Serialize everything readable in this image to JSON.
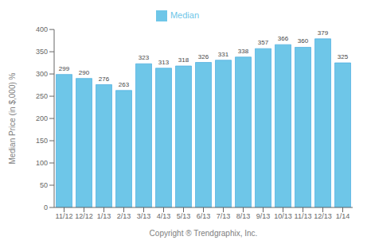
{
  "chart_data": {
    "type": "bar",
    "categories": [
      "11/12",
      "12/12",
      "1/13",
      "2/13",
      "3/13",
      "4/13",
      "5/13",
      "6/13",
      "7/13",
      "8/13",
      "9/13",
      "10/13",
      "11/13",
      "12/13",
      "1/14"
    ],
    "series": [
      {
        "name": "Median",
        "color": "#6EC6E8",
        "values": [
          299,
          290,
          276,
          263,
          323,
          313,
          318,
          326,
          331,
          338,
          357,
          366,
          360,
          379,
          325
        ]
      }
    ],
    "xlabel": "Copyright ® Trendgraphix, Inc.",
    "ylabel": "Median Price (in $,000) %",
    "ylim": [
      0,
      400
    ],
    "yticks": [
      0,
      50,
      100,
      150,
      200,
      250,
      300,
      350,
      400
    ],
    "legend": "top",
    "data_labels": true,
    "grid": false
  }
}
